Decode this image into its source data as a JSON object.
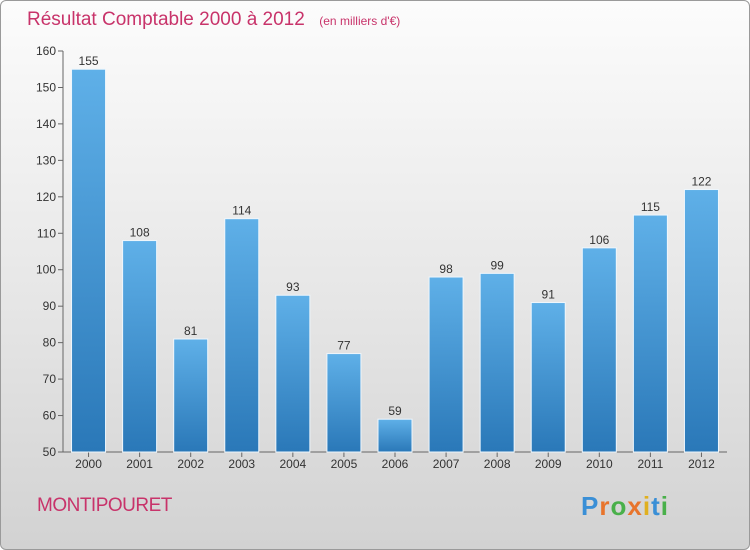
{
  "header": {
    "title": "Résultat Comptable 2000 à 2012",
    "unit_note": "(en milliers d'€)"
  },
  "footer": {
    "commune": "MONTIPOURET",
    "logo_text": "Proxiti"
  },
  "colors": {
    "title": "#c8336a",
    "bar_top": "#5fb0e8",
    "bar_bottom": "#2a78b8",
    "logo_letters": [
      "#3a8fd6",
      "#e8742b",
      "#49b04a",
      "#e8742b",
      "#e0b020",
      "#3a8fd6",
      "#49b04a"
    ]
  },
  "chart_data": {
    "type": "bar",
    "categories": [
      "2000",
      "2001",
      "2002",
      "2003",
      "2004",
      "2005",
      "2006",
      "2007",
      "2008",
      "2009",
      "2010",
      "2011",
      "2012"
    ],
    "values": [
      155,
      108,
      81,
      114,
      93,
      77,
      59,
      98,
      99,
      91,
      106,
      115,
      122
    ],
    "ylim": [
      50,
      160
    ],
    "yticks": [
      50,
      60,
      70,
      80,
      90,
      100,
      110,
      120,
      130,
      140,
      150,
      160
    ],
    "grid": false,
    "data_labels": true
  }
}
